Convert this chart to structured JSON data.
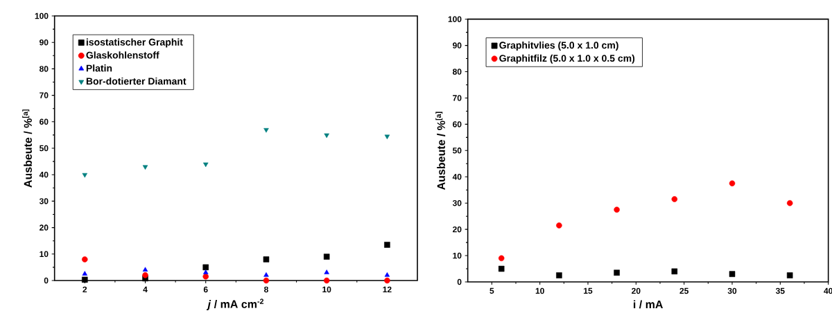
{
  "chart_data": [
    {
      "type": "scatter",
      "xlabel": "*j* / mA cm$^{-2}$",
      "ylabel": "Ausbeute / %$^{[a]}$",
      "xlim": [
        1,
        13
      ],
      "ylim": [
        0,
        100
      ],
      "xticks": [
        2,
        4,
        6,
        8,
        10,
        12
      ],
      "yticks": [
        0,
        10,
        20,
        30,
        40,
        50,
        60,
        70,
        80,
        90,
        100
      ],
      "legend": "top left",
      "grid": false,
      "x": [
        2,
        4,
        6,
        8,
        10,
        12
      ],
      "series": [
        {
          "name": "isostatischer Graphit",
          "color": "#000000",
          "marker": "square",
          "values": [
            0.3,
            0.8,
            5,
            8,
            9,
            13.5
          ]
        },
        {
          "name": "Glaskohlenstoff",
          "color": "#ff0000",
          "marker": "circle",
          "values": [
            8,
            2,
            1.5,
            0,
            0,
            0
          ]
        },
        {
          "name": "Platin",
          "color": "#0000ff",
          "marker": "triangle",
          "values": [
            2.5,
            4,
            3,
            2,
            3,
            2
          ]
        },
        {
          "name": "Bor-dotierter Diamant",
          "color": "#008080",
          "marker": "triangle_down",
          "values": [
            40,
            43,
            44,
            57,
            55,
            54.5
          ]
        }
      ]
    },
    {
      "type": "scatter",
      "xlabel": "i / mA",
      "ylabel": "Ausbeute / %$^{[a]}$",
      "xlim": [
        2.5,
        40
      ],
      "ylim": [
        0,
        100
      ],
      "xticks": [
        5,
        10,
        15,
        20,
        25,
        30,
        35,
        40
      ],
      "yticks": [
        0,
        10,
        20,
        30,
        40,
        50,
        60,
        70,
        80,
        90,
        100
      ],
      "legend": "top left",
      "grid": false,
      "x": [
        6,
        12,
        18,
        24,
        30,
        36
      ],
      "series": [
        {
          "name": "Graphitvlies (5.0 x 1.0 cm)",
          "color": "#000000",
          "marker": "square",
          "values": [
            5,
            2.5,
            3.5,
            4,
            3,
            2.5
          ]
        },
        {
          "name": "Graphitfilz (5.0 x 1.0 x 0.5 cm)",
          "color": "#ff0000",
          "marker": "circle",
          "values": [
            9,
            21.5,
            27.5,
            31.5,
            37.5,
            30
          ]
        }
      ]
    }
  ]
}
